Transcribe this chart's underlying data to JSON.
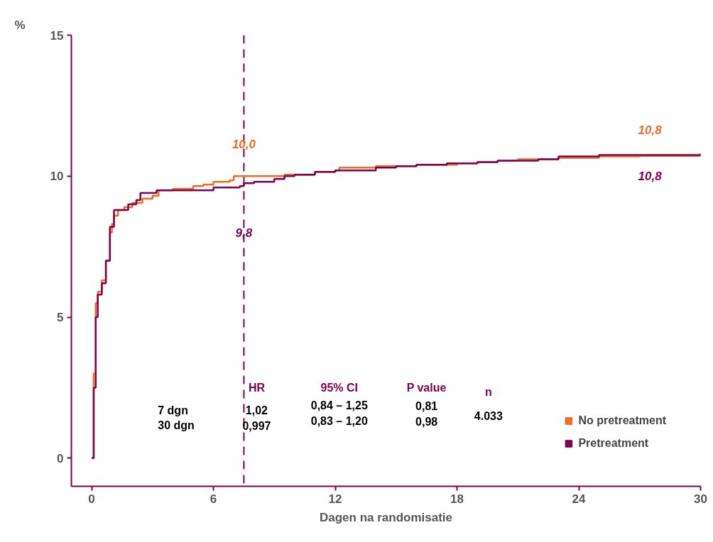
{
  "chart_data": {
    "type": "step",
    "xlabel": "Dagen na randomisatie",
    "ylabel": "%",
    "xlim": [
      -1,
      30
    ],
    "xticks": [
      0,
      6,
      12,
      18,
      24,
      30
    ],
    "ylim": [
      -1,
      15
    ],
    "yticks": [
      0,
      5,
      10,
      15
    ],
    "grid": false,
    "legend": "bottom right",
    "line_style": "solid",
    "series": [
      {
        "name": "No pretreatment",
        "color": "#f26b21",
        "x": [
          0,
          0.1,
          0.2,
          0.3,
          0.5,
          0.7,
          0.9,
          1.0,
          1.1,
          1.3,
          1.6,
          2,
          2.5,
          3,
          3.3,
          4,
          5,
          5.5,
          6,
          6.8,
          7,
          9,
          9.5,
          11,
          12,
          12.2,
          14,
          15,
          16,
          17,
          18,
          19,
          20,
          21,
          23,
          25,
          27,
          30
        ],
        "values": [
          0,
          3,
          5.5,
          5.9,
          6.3,
          7,
          8,
          8.3,
          8.6,
          8.8,
          8.9,
          9.05,
          9.2,
          9.3,
          9.5,
          9.55,
          9.65,
          9.7,
          9.8,
          9.85,
          10,
          10,
          10.05,
          10.15,
          10.2,
          10.3,
          10.35,
          10.35,
          10.4,
          10.4,
          10.45,
          10.5,
          10.55,
          10.6,
          10.65,
          10.7,
          10.72,
          10.8
        ]
      },
      {
        "name": "Pretreatment",
        "color": "#800050",
        "x": [
          0,
          0.1,
          0.2,
          0.3,
          0.5,
          0.7,
          0.9,
          1.1,
          1.5,
          1.8,
          2.2,
          2.4,
          3,
          3.2,
          4,
          6,
          7.3,
          7.5,
          8,
          9,
          9.5,
          10,
          11,
          12,
          14,
          15,
          16,
          17.5,
          19,
          20,
          22,
          23,
          24,
          25,
          27,
          29.8,
          30
        ],
        "values": [
          0,
          2.5,
          5,
          5.8,
          6.2,
          7,
          8.2,
          8.8,
          8.8,
          9.0,
          9.15,
          9.4,
          9.4,
          9.5,
          9.5,
          9.6,
          9.65,
          9.75,
          9.8,
          9.9,
          10.0,
          10.05,
          10.15,
          10.2,
          10.3,
          10.35,
          10.4,
          10.45,
          10.5,
          10.55,
          10.6,
          10.7,
          10.7,
          10.75,
          10.75,
          10.75,
          10.8
        ]
      }
    ],
    "ref_lines": [
      {
        "axis": "x",
        "value": 7.5,
        "label": null,
        "color": "#800050",
        "line_style": "dashed"
      }
    ],
    "annotations": [
      "10,0",
      "9,8",
      "10,8",
      "10,8",
      "HR",
      "95% CI",
      "P value",
      "n",
      "7 dgn",
      "30 dgn",
      "1,02",
      "0,997",
      "0,84 – 1,25",
      "0,83 – 1,20",
      "0,81",
      "0,98",
      "4.033"
    ]
  }
}
